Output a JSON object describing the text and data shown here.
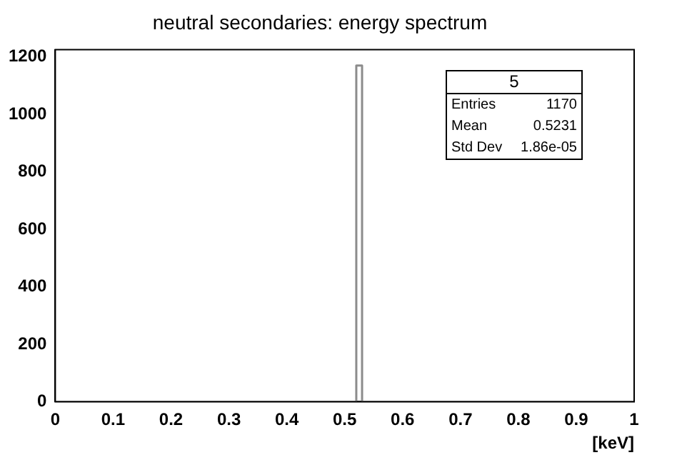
{
  "chart_data": {
    "type": "histogram",
    "title": "neutral secondaries: energy spectrum",
    "xlabel": "[keV]",
    "bins": [
      0,
      0.52,
      0.53,
      1
    ],
    "values": [
      0,
      1170,
      0
    ],
    "color": "#8c8c8c",
    "xlim": [
      0,
      1
    ],
    "xticks": [
      0,
      0.1,
      0.2,
      0.3,
      0.4,
      0.5,
      0.6,
      0.7,
      0.8,
      0.9,
      1
    ],
    "ylim": [
      0,
      1225
    ],
    "yticks": [
      0,
      200,
      400,
      600,
      800,
      1000,
      1200
    ],
    "grid": false,
    "legend": false,
    "annotations": [
      "5",
      "Entries",
      "1170",
      "Mean",
      "0.5231",
      "Std Dev",
      "1.86e-05"
    ]
  }
}
